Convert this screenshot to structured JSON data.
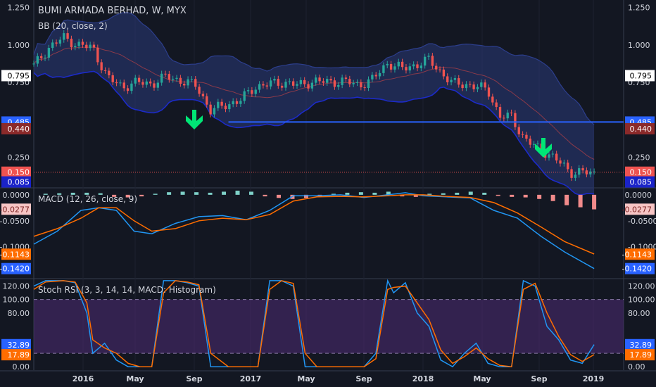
{
  "header": {
    "title": "BUMI ARMADA BERHAD, W, MYX",
    "bb_label": "BB (20, close, 2)",
    "macd_label": "MACD (12, 26, close, 9)",
    "stoch_label": "Stoch RSI (3, 3, 14, 14, MACD: Histogram)"
  },
  "colors": {
    "background": "#131722",
    "up_candle": "#26a69a",
    "down_candle": "#ef5350",
    "bb_band": "#1c2bc8",
    "bb_fill": "#2a3a7a",
    "macd_line": "#2196f3",
    "signal_line": "#ff6d00",
    "stoch_k": "#2196f3",
    "stoch_d": "#ff6d00",
    "stoch_zone": "#4a2a6e",
    "support_line": "#2962ff",
    "arrow": "#00e676"
  },
  "chart_data": [
    {
      "type": "candlestick",
      "title": "BUMI ARMADA BERHAD, W, MYX",
      "indicator": "BB (20, close, 2)",
      "x_ticks": [
        "2016",
        "May",
        "Sep",
        "2017",
        "May",
        "Sep",
        "2018",
        "May",
        "Sep",
        "2019"
      ],
      "y_ticks": [
        "1.250",
        "1.000",
        "0.750",
        "0.250"
      ],
      "ylim": [
        0.05,
        1.3
      ],
      "key_prices": [
        {
          "label": "0.795",
          "value": 0.795,
          "style": "white"
        },
        {
          "label": "0.485",
          "value": 0.485,
          "style": "blue"
        },
        {
          "label": "0.440",
          "value": 0.44,
          "style": "darkred"
        },
        {
          "label": "0.150",
          "value": 0.15,
          "style": "red"
        },
        {
          "label": "0.085",
          "value": 0.085,
          "style": "navy"
        }
      ],
      "support_level": 0.485,
      "trend_points": [
        {
          "t": 0.0,
          "p": 0.86
        },
        {
          "t": 0.025,
          "p": 0.98
        },
        {
          "t": 0.05,
          "p": 1.05
        },
        {
          "t": 0.075,
          "p": 1.0
        },
        {
          "t": 0.1,
          "p": 0.98
        },
        {
          "t": 0.125,
          "p": 0.78
        },
        {
          "t": 0.15,
          "p": 0.72
        },
        {
          "t": 0.175,
          "p": 0.75
        },
        {
          "t": 0.2,
          "p": 0.74
        },
        {
          "t": 0.225,
          "p": 0.79
        },
        {
          "t": 0.25,
          "p": 0.76
        },
        {
          "t": 0.275,
          "p": 0.73
        },
        {
          "t": 0.3,
          "p": 0.56
        },
        {
          "t": 0.325,
          "p": 0.6
        },
        {
          "t": 0.35,
          "p": 0.63
        },
        {
          "t": 0.375,
          "p": 0.72
        },
        {
          "t": 0.4,
          "p": 0.74
        },
        {
          "t": 0.425,
          "p": 0.75
        },
        {
          "t": 0.45,
          "p": 0.73
        },
        {
          "t": 0.475,
          "p": 0.76
        },
        {
          "t": 0.5,
          "p": 0.75
        },
        {
          "t": 0.525,
          "p": 0.76
        },
        {
          "t": 0.55,
          "p": 0.73
        },
        {
          "t": 0.575,
          "p": 0.77
        },
        {
          "t": 0.6,
          "p": 0.88
        },
        {
          "t": 0.625,
          "p": 0.84
        },
        {
          "t": 0.65,
          "p": 0.87
        },
        {
          "t": 0.67,
          "p": 0.9
        },
        {
          "t": 0.69,
          "p": 0.82
        },
        {
          "t": 0.71,
          "p": 0.74
        },
        {
          "t": 0.73,
          "p": 0.74
        },
        {
          "t": 0.75,
          "p": 0.72
        },
        {
          "t": 0.77,
          "p": 0.7
        },
        {
          "t": 0.79,
          "p": 0.52
        },
        {
          "t": 0.81,
          "p": 0.52
        },
        {
          "t": 0.83,
          "p": 0.38
        },
        {
          "t": 0.85,
          "p": 0.32
        },
        {
          "t": 0.87,
          "p": 0.28
        },
        {
          "t": 0.89,
          "p": 0.22
        },
        {
          "t": 0.91,
          "p": 0.15
        },
        {
          "t": 0.93,
          "p": 0.15
        },
        {
          "t": 0.95,
          "p": 0.14
        }
      ]
    },
    {
      "type": "line",
      "title": "MACD (12, 26, close, 9)",
      "y_ticks": [
        "0.0000",
        "-0.0500",
        "-0.1000"
      ],
      "ylim": [
        -0.16,
        0.012
      ],
      "key_values": [
        {
          "label": "0.0000",
          "value": 0.0,
          "style": "plain"
        },
        {
          "label": "-0.0277",
          "value": -0.0277,
          "style": "pink"
        },
        {
          "label": "-0.1143",
          "value": -0.1143,
          "style": "orange"
        },
        {
          "label": "-0.1420",
          "value": -0.142,
          "style": "blue"
        }
      ],
      "series": [
        {
          "name": "",
          "role": "macd",
          "x": [
            0.0,
            0.04,
            0.08,
            0.11,
            0.14,
            0.17,
            0.2,
            0.24,
            0.28,
            0.32,
            0.36,
            0.4,
            0.44,
            0.48,
            0.52,
            0.56,
            0.6,
            0.63,
            0.66,
            0.7,
            0.74,
            0.78,
            0.82,
            0.86,
            0.9,
            0.95
          ],
          "y": [
            -0.095,
            -0.07,
            -0.03,
            -0.025,
            -0.03,
            -0.07,
            -0.075,
            -0.055,
            -0.042,
            -0.04,
            -0.048,
            -0.03,
            -0.002,
            -0.002,
            0.0,
            -0.005,
            0.0,
            0.004,
            -0.002,
            -0.004,
            -0.006,
            -0.03,
            -0.045,
            -0.08,
            -0.11,
            -0.142
          ]
        },
        {
          "name": "",
          "role": "signal",
          "x": [
            0.0,
            0.04,
            0.08,
            0.11,
            0.14,
            0.17,
            0.2,
            0.24,
            0.28,
            0.32,
            0.36,
            0.4,
            0.44,
            0.48,
            0.52,
            0.56,
            0.6,
            0.63,
            0.66,
            0.7,
            0.74,
            0.78,
            0.82,
            0.86,
            0.9,
            0.95
          ],
          "y": [
            -0.08,
            -0.065,
            -0.045,
            -0.025,
            -0.025,
            -0.05,
            -0.07,
            -0.065,
            -0.05,
            -0.045,
            -0.048,
            -0.038,
            -0.012,
            -0.004,
            -0.003,
            -0.004,
            -0.002,
            0.0,
            0.0,
            -0.003,
            -0.005,
            -0.015,
            -0.035,
            -0.062,
            -0.09,
            -0.114
          ]
        }
      ],
      "histogram": [
        0.002,
        0.003,
        0.004,
        0.004,
        0.003,
        -0.004,
        -0.005,
        -0.003,
        0.002,
        0.005,
        0.006,
        0.005,
        0.004,
        0.006,
        0.008,
        0.006,
        -0.003,
        -0.006,
        -0.008,
        -0.006,
        -0.004,
        0.002,
        0.004,
        0.005,
        0.004,
        0.006,
        -0.003,
        -0.004,
        0.002,
        0.003,
        0.004,
        0.006,
        0.004,
        -0.002,
        -0.004,
        -0.005,
        -0.008,
        -0.012,
        -0.02,
        -0.024,
        -0.028
      ]
    },
    {
      "type": "line",
      "title": "Stoch RSI (3, 3, 14, 14, MACD: Histogram)",
      "y_ticks": [
        "120.00",
        "100.00",
        "80.00",
        "0.00"
      ],
      "ylim": [
        -5,
        130
      ],
      "band": [
        20,
        100
      ],
      "key_values": [
        {
          "label": "32.89",
          "value": 32.89,
          "style": "blue"
        },
        {
          "label": "17.89",
          "value": 17.89,
          "style": "orange"
        }
      ],
      "series": [
        {
          "name": "",
          "role": "k",
          "x": [
            0.0,
            0.02,
            0.05,
            0.07,
            0.09,
            0.1,
            0.12,
            0.14,
            0.16,
            0.18,
            0.2,
            0.22,
            0.24,
            0.26,
            0.28,
            0.3,
            0.33,
            0.36,
            0.38,
            0.4,
            0.42,
            0.44,
            0.46,
            0.48,
            0.5,
            0.53,
            0.56,
            0.58,
            0.6,
            0.61,
            0.63,
            0.65,
            0.67,
            0.69,
            0.71,
            0.73,
            0.75,
            0.77,
            0.79,
            0.81,
            0.83,
            0.85,
            0.87,
            0.89,
            0.91,
            0.93,
            0.95
          ],
          "y": [
            120,
            128,
            128,
            125,
            80,
            20,
            35,
            10,
            0,
            0,
            0,
            128,
            128,
            125,
            120,
            0,
            0,
            0,
            0,
            128,
            128,
            120,
            0,
            0,
            0,
            0,
            0,
            20,
            128,
            110,
            125,
            80,
            60,
            10,
            0,
            20,
            35,
            5,
            0,
            0,
            128,
            120,
            60,
            40,
            10,
            5,
            33
          ]
        },
        {
          "name": "",
          "role": "d",
          "x": [
            0.0,
            0.02,
            0.05,
            0.07,
            0.09,
            0.1,
            0.12,
            0.14,
            0.16,
            0.18,
            0.2,
            0.22,
            0.24,
            0.26,
            0.28,
            0.3,
            0.33,
            0.36,
            0.38,
            0.4,
            0.42,
            0.44,
            0.46,
            0.48,
            0.5,
            0.53,
            0.56,
            0.58,
            0.6,
            0.61,
            0.63,
            0.65,
            0.67,
            0.69,
            0.71,
            0.73,
            0.75,
            0.77,
            0.79,
            0.81,
            0.83,
            0.85,
            0.87,
            0.89,
            0.91,
            0.93,
            0.95
          ],
          "y": [
            115,
            126,
            128,
            126,
            95,
            40,
            28,
            20,
            5,
            0,
            0,
            110,
            128,
            126,
            122,
            20,
            0,
            0,
            0,
            115,
            128,
            124,
            20,
            0,
            0,
            0,
            0,
            12,
            115,
            118,
            120,
            95,
            70,
            25,
            5,
            15,
            28,
            12,
            2,
            0,
            115,
            124,
            80,
            45,
            18,
            8,
            18
          ]
        }
      ]
    }
  ]
}
